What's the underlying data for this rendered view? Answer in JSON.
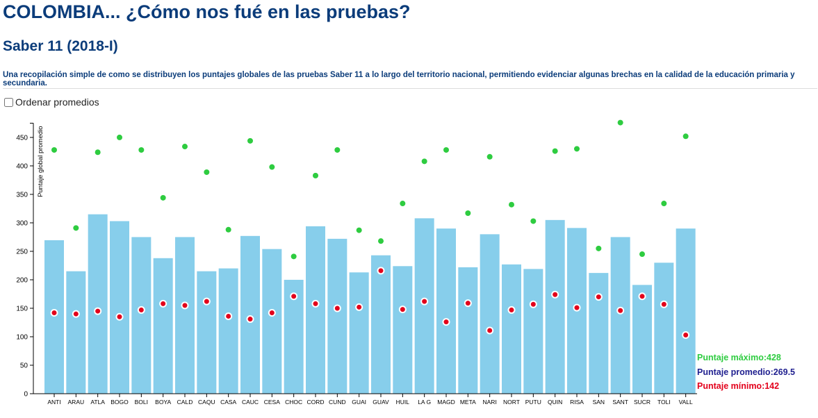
{
  "header": {
    "title": "COLOMBIA... ¿Cómo nos fué en las pruebas?",
    "subtitle": "Saber 11 (2018-I)",
    "description": "Una recopilación simple de como se distribuyen los puntajes globales de las pruebas Saber 11 a lo largo del territorio nacional, permitiendo evidenciar algunas brechas en la calidad de la educación primaria y secundaria."
  },
  "controls": {
    "sort_label": "Ordenar promedios",
    "sort_checked": false
  },
  "colors": {
    "bar": "#87ceeb",
    "max": "#2ecc40",
    "avg": "#1f1f8f",
    "min": "#e3001b",
    "axis": "#000000"
  },
  "legend": {
    "max": "Puntaje máximo:428",
    "avg": "Puntaje promedio:269.5",
    "min": "Puntaje mínimo:142"
  },
  "chart_data": {
    "type": "bar",
    "title": "",
    "xlabel": "",
    "ylabel": "Puntaje global promedio",
    "ylim": [
      0,
      475
    ],
    "yticks": [
      0,
      50,
      100,
      150,
      200,
      250,
      300,
      350,
      400,
      450
    ],
    "categories": [
      "ANTI",
      "ARAU",
      "ATLA",
      "BOGO",
      "BOLI",
      "BOYA",
      "CALD",
      "CAQU",
      "CASA",
      "CAUC",
      "CESA",
      "CHOC",
      "CORD",
      "CUND",
      "GUAI",
      "GUAV",
      "HUIL",
      "LA G",
      "MAGD",
      "META",
      "NARI",
      "NORT",
      "PUTU",
      "QUIN",
      "RISA",
      "SAN",
      "SANT",
      "SUCR",
      "TOLI",
      "VALL"
    ],
    "series": [
      {
        "name": "Puntaje promedio",
        "kind": "bar",
        "values": [
          269.5,
          215,
          315,
          303,
          275,
          238,
          275,
          215,
          220,
          277,
          254,
          200,
          294,
          272,
          213,
          243,
          224,
          308,
          290,
          222,
          280,
          227,
          219,
          305,
          291,
          212,
          275,
          191,
          230,
          290
        ]
      },
      {
        "name": "Puntaje máximo",
        "kind": "point",
        "values": [
          428,
          291,
          424,
          450,
          428,
          344,
          434,
          389,
          288,
          444,
          398,
          241,
          383,
          428,
          287,
          268,
          334,
          408,
          428,
          317,
          416,
          332,
          303,
          426,
          430,
          255,
          476,
          245,
          334,
          452
        ]
      },
      {
        "name": "Puntaje mínimo",
        "kind": "point",
        "values": [
          142,
          140,
          145,
          135,
          147,
          158,
          155,
          162,
          136,
          131,
          142,
          171,
          158,
          150,
          152,
          216,
          148,
          162,
          126,
          159,
          111,
          147,
          157,
          174,
          151,
          170,
          146,
          171,
          157,
          103
        ]
      }
    ]
  }
}
